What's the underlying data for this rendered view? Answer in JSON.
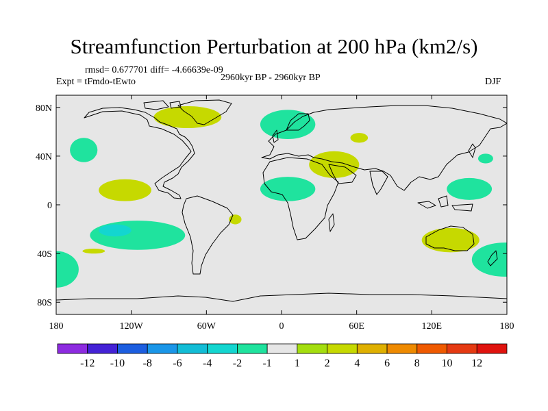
{
  "chart_data": {
    "type": "heatmap",
    "title": "Streamfunction Perturbation at 200 hPa (km2/s)",
    "stats": "rmsd= 0.677701 diff= -4.66639e-09",
    "left_label": "Expt = tFmdo-tEwto",
    "center_label": "2960kyr BP - 2960kyr BP",
    "right_label": "DJF",
    "x_axis": {
      "range": [
        -180,
        180
      ],
      "ticks": [
        -180,
        -120,
        -60,
        0,
        60,
        120,
        180
      ],
      "tick_labels": [
        "180",
        "120W",
        "60W",
        "0",
        "60E",
        "120E",
        "180"
      ]
    },
    "y_axis": {
      "range": [
        -90,
        90
      ],
      "ticks": [
        80,
        40,
        0,
        -40,
        -80
      ],
      "tick_labels": [
        "80N",
        "40N",
        "0",
        "40S",
        "80S"
      ]
    },
    "colorbar": {
      "levels": [
        "-12",
        "-10",
        "-8",
        "-6",
        "-4",
        "-2",
        "-1",
        "1",
        "2",
        "4",
        "6",
        "8",
        "10",
        "12"
      ],
      "colors": [
        "#8d2be0",
        "#4422d6",
        "#1c5ee0",
        "#1a96e8",
        "#12bdd6",
        "#13d6d0",
        "#1fe39e",
        "#e6e6e6",
        "#a4de0f",
        "#c6d900",
        "#dfb000",
        "#ee8a00",
        "#ef5a00",
        "#e53a12",
        "#e0130e"
      ]
    },
    "anomalies": [
      {
        "name": "greenland",
        "lon": -75,
        "lat": 72,
        "rx": 27,
        "ry": 9,
        "level": 2
      },
      {
        "name": "scandinavia",
        "lon": 5,
        "lat": 66,
        "rx": 22,
        "ry": 12,
        "level": -1
      },
      {
        "name": "north-pacific",
        "lon": -158,
        "lat": 45,
        "rx": 11,
        "ry": 10,
        "level": -1
      },
      {
        "name": "kazakhstan",
        "lon": 62,
        "lat": 55,
        "rx": 7,
        "ry": 4,
        "level": 2
      },
      {
        "name": "middle-east",
        "lon": 42,
        "lat": 33,
        "rx": 20,
        "ry": 11,
        "level": 2
      },
      {
        "name": "north-pacific-east",
        "lon": 163,
        "lat": 38,
        "rx": 6,
        "ry": 4,
        "level": -1
      },
      {
        "name": "central-pacific",
        "lon": -125,
        "lat": 12,
        "rx": 21,
        "ry": 9,
        "level": 2
      },
      {
        "name": "tropical-atlantic",
        "lon": 5,
        "lat": 13,
        "rx": 22,
        "ry": 10,
        "level": -1
      },
      {
        "name": "west-pacific",
        "lon": 150,
        "lat": 13,
        "rx": 18,
        "ry": 9,
        "level": -1
      },
      {
        "name": "south-pacific",
        "lon": -115,
        "lat": -25,
        "rx": 38,
        "ry": 12,
        "level": -1
      },
      {
        "name": "south-pacific-core",
        "lon": -133,
        "lat": -21,
        "rx": 13,
        "ry": 5,
        "level": -2
      },
      {
        "name": "brazil",
        "lon": -37,
        "lat": -12,
        "rx": 5,
        "ry": 4,
        "level": 2
      },
      {
        "name": "australia",
        "lon": 135,
        "lat": -29,
        "rx": 23,
        "ry": 10,
        "level": 2
      },
      {
        "name": "southern-ocean-west",
        "lon": -180,
        "lat": -53,
        "rx": 18,
        "ry": 15,
        "level": -1
      },
      {
        "name": "southern-ocean-east",
        "lon": 178,
        "lat": -45,
        "rx": 26,
        "ry": 14,
        "level": -1
      },
      {
        "name": "south-pacific-streak",
        "lon": -150,
        "lat": -38,
        "rx": 9,
        "ry": 2,
        "level": 2
      }
    ]
  }
}
